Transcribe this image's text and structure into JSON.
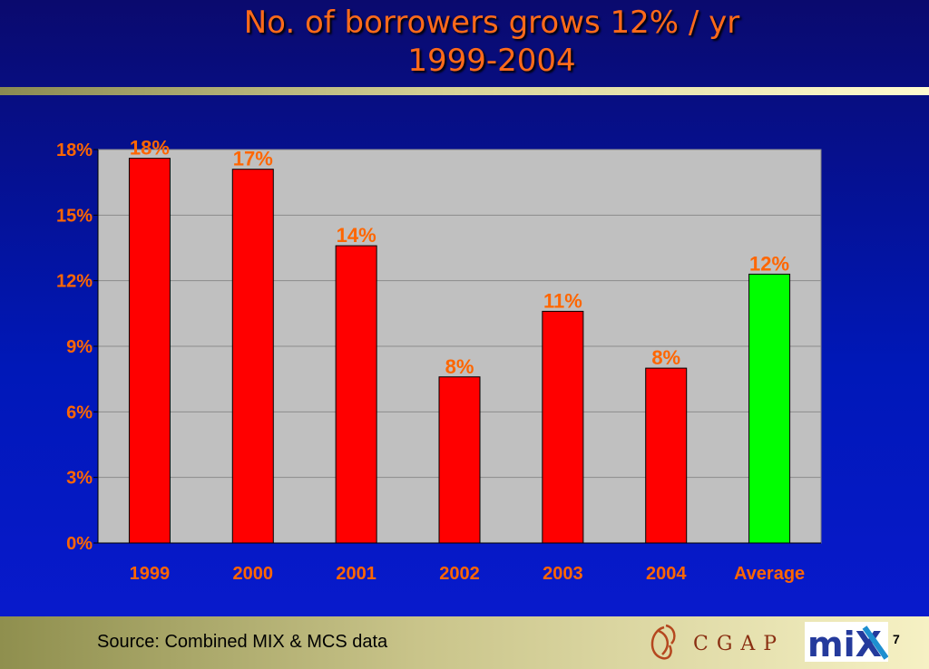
{
  "slide": {
    "title_line1": "No. of borrowers grows 12% / yr",
    "title_line2": "1999-2004",
    "source": "Source: Combined MIX & MCS data",
    "page_number": "7",
    "logos": {
      "cgap_text": "CGAP",
      "mix_text": "miX"
    }
  },
  "chart_data": {
    "type": "bar",
    "title": "",
    "xlabel": "",
    "ylabel": "",
    "categories": [
      "1999",
      "2000",
      "2001",
      "2002",
      "2003",
      "2004",
      "Average"
    ],
    "values": [
      17.6,
      17.1,
      13.6,
      7.6,
      10.6,
      8.0,
      12.3
    ],
    "data_labels": [
      "18%",
      "17%",
      "14%",
      "8%",
      "11%",
      "8%",
      "12%"
    ],
    "ylim": [
      0,
      18
    ],
    "yticks": [
      0,
      3,
      6,
      9,
      12,
      15,
      18
    ],
    "ytick_labels": [
      "0%",
      "3%",
      "6%",
      "9%",
      "12%",
      "15%",
      "18%"
    ],
    "grid": true,
    "colors": {
      "bar": "#ff0000",
      "average_bar": "#00ff00",
      "plot_background": "#c0c0c0",
      "tick_label": "#ff6600",
      "data_label": "#ff6600"
    }
  }
}
